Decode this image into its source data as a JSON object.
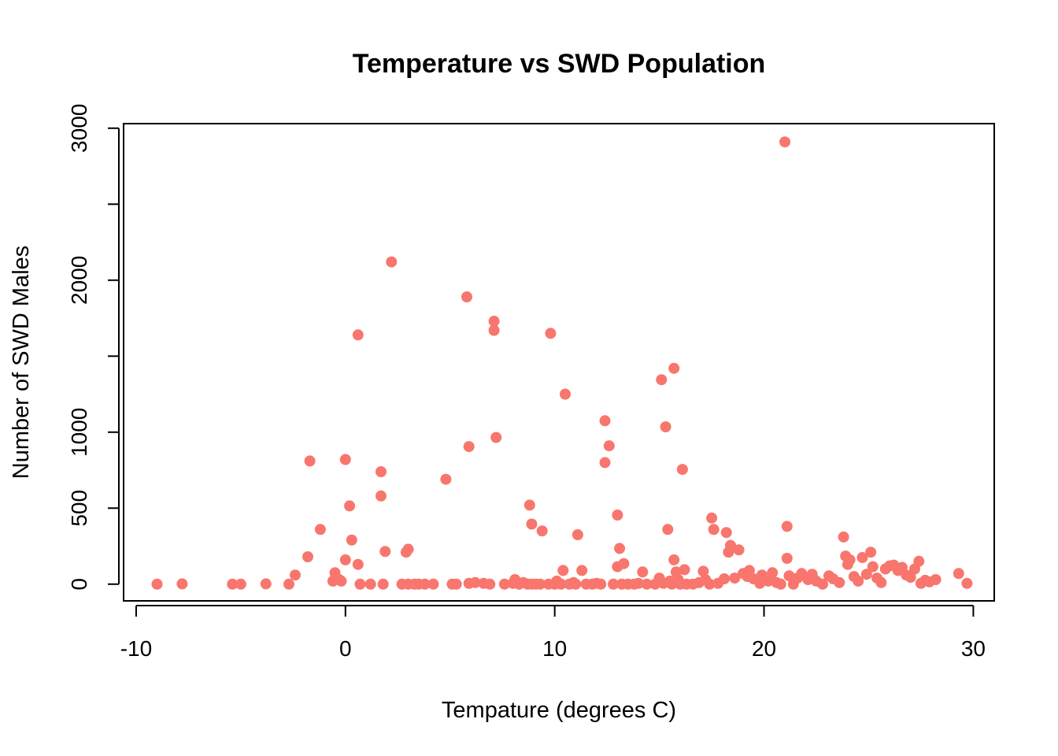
{
  "chart_data": {
    "type": "scatter",
    "title": "Temperature vs SWD Population",
    "xlabel": "Tempature (degrees C)",
    "ylabel": "Number of SWD Males",
    "xlim": [
      -10.6,
      31.0
    ],
    "ylim": [
      -110,
      3030
    ],
    "xticks": [
      -10,
      0,
      10,
      20,
      30
    ],
    "xtick_labels": [
      "-10",
      "0",
      "10",
      "20",
      "30"
    ],
    "yticks": [
      0,
      500,
      1000,
      1500,
      2000,
      2500,
      3000
    ],
    "ytick_labels": [
      "0",
      "500",
      "1000",
      "",
      "2000",
      "",
      "3000"
    ],
    "point_color": "#F8766D",
    "grid": false,
    "legend": "none",
    "points": [
      [
        -9.0,
        0
      ],
      [
        -7.8,
        2
      ],
      [
        -5.4,
        0
      ],
      [
        -5.0,
        0
      ],
      [
        -3.8,
        2
      ],
      [
        -2.7,
        0
      ],
      [
        -2.4,
        60
      ],
      [
        -1.7,
        810
      ],
      [
        -1.2,
        360
      ],
      [
        -1.8,
        180
      ],
      [
        -0.6,
        20
      ],
      [
        -0.5,
        75
      ],
      [
        -0.3,
        30
      ],
      [
        -0.2,
        20
      ],
      [
        0.0,
        820
      ],
      [
        0.0,
        160
      ],
      [
        0.2,
        515
      ],
      [
        0.3,
        290
      ],
      [
        0.6,
        1640
      ],
      [
        0.6,
        130
      ],
      [
        0.7,
        0
      ],
      [
        1.2,
        0
      ],
      [
        1.7,
        740
      ],
      [
        1.7,
        580
      ],
      [
        1.8,
        0
      ],
      [
        1.9,
        215
      ],
      [
        2.2,
        2120
      ],
      [
        2.7,
        0
      ],
      [
        2.9,
        210
      ],
      [
        3.0,
        230
      ],
      [
        3.0,
        0
      ],
      [
        3.3,
        0
      ],
      [
        3.5,
        0
      ],
      [
        3.8,
        0
      ],
      [
        4.2,
        0
      ],
      [
        4.8,
        690
      ],
      [
        5.1,
        0
      ],
      [
        5.3,
        0
      ],
      [
        5.8,
        1890
      ],
      [
        5.9,
        905
      ],
      [
        5.9,
        5
      ],
      [
        6.2,
        10
      ],
      [
        6.6,
        5
      ],
      [
        6.9,
        0
      ],
      [
        7.1,
        1670
      ],
      [
        7.1,
        1730
      ],
      [
        7.2,
        965
      ],
      [
        7.6,
        0
      ],
      [
        8.0,
        5
      ],
      [
        8.1,
        30
      ],
      [
        8.3,
        0
      ],
      [
        8.5,
        10
      ],
      [
        8.7,
        0
      ],
      [
        8.8,
        520
      ],
      [
        8.9,
        395
      ],
      [
        8.9,
        0
      ],
      [
        9.1,
        0
      ],
      [
        9.3,
        0
      ],
      [
        9.4,
        350
      ],
      [
        9.7,
        0
      ],
      [
        9.8,
        1650
      ],
      [
        10.0,
        0
      ],
      [
        10.1,
        20
      ],
      [
        10.3,
        0
      ],
      [
        10.4,
        90
      ],
      [
        10.5,
        1250
      ],
      [
        10.7,
        0
      ],
      [
        10.9,
        10
      ],
      [
        11.0,
        0
      ],
      [
        11.1,
        325
      ],
      [
        11.3,
        90
      ],
      [
        11.5,
        0
      ],
      [
        11.8,
        0
      ],
      [
        12.0,
        5
      ],
      [
        12.2,
        0
      ],
      [
        12.4,
        1075
      ],
      [
        12.4,
        800
      ],
      [
        12.6,
        910
      ],
      [
        12.8,
        0
      ],
      [
        13.0,
        455
      ],
      [
        13.0,
        115
      ],
      [
        13.1,
        235
      ],
      [
        13.2,
        0
      ],
      [
        13.3,
        135
      ],
      [
        13.5,
        0
      ],
      [
        13.8,
        0
      ],
      [
        14.0,
        5
      ],
      [
        14.2,
        80
      ],
      [
        14.4,
        0
      ],
      [
        14.8,
        0
      ],
      [
        15.0,
        40
      ],
      [
        15.1,
        1345
      ],
      [
        15.2,
        5
      ],
      [
        15.3,
        1035
      ],
      [
        15.4,
        360
      ],
      [
        15.5,
        20
      ],
      [
        15.6,
        0
      ],
      [
        15.7,
        1420
      ],
      [
        15.7,
        160
      ],
      [
        15.8,
        80
      ],
      [
        15.9,
        30
      ],
      [
        16.0,
        0
      ],
      [
        16.1,
        755
      ],
      [
        16.2,
        95
      ],
      [
        16.3,
        0
      ],
      [
        16.6,
        0
      ],
      [
        16.9,
        10
      ],
      [
        17.1,
        85
      ],
      [
        17.2,
        30
      ],
      [
        17.4,
        0
      ],
      [
        17.5,
        435
      ],
      [
        17.6,
        360
      ],
      [
        17.8,
        5
      ],
      [
        18.1,
        35
      ],
      [
        18.2,
        340
      ],
      [
        18.3,
        210
      ],
      [
        18.4,
        255
      ],
      [
        18.6,
        40
      ],
      [
        18.8,
        225
      ],
      [
        19.0,
        70
      ],
      [
        19.2,
        50
      ],
      [
        19.3,
        90
      ],
      [
        19.5,
        35
      ],
      [
        19.8,
        5
      ],
      [
        19.9,
        60
      ],
      [
        20.2,
        20
      ],
      [
        20.4,
        75
      ],
      [
        20.6,
        10
      ],
      [
        20.8,
        0
      ],
      [
        21.0,
        2910
      ],
      [
        21.1,
        380
      ],
      [
        21.1,
        170
      ],
      [
        21.2,
        55
      ],
      [
        21.4,
        0
      ],
      [
        21.6,
        40
      ],
      [
        21.8,
        70
      ],
      [
        22.1,
        30
      ],
      [
        22.3,
        65
      ],
      [
        22.5,
        20
      ],
      [
        22.8,
        0
      ],
      [
        23.1,
        55
      ],
      [
        23.3,
        35
      ],
      [
        23.6,
        10
      ],
      [
        23.8,
        310
      ],
      [
        23.9,
        185
      ],
      [
        24.0,
        130
      ],
      [
        24.1,
        160
      ],
      [
        24.3,
        50
      ],
      [
        24.5,
        20
      ],
      [
        24.7,
        175
      ],
      [
        24.9,
        65
      ],
      [
        25.1,
        210
      ],
      [
        25.2,
        115
      ],
      [
        25.4,
        40
      ],
      [
        25.6,
        10
      ],
      [
        25.8,
        100
      ],
      [
        26.0,
        120
      ],
      [
        26.2,
        125
      ],
      [
        26.4,
        90
      ],
      [
        26.6,
        110
      ],
      [
        26.8,
        60
      ],
      [
        27.0,
        45
      ],
      [
        27.2,
        100
      ],
      [
        27.4,
        150
      ],
      [
        27.5,
        5
      ],
      [
        27.7,
        25
      ],
      [
        27.9,
        15
      ],
      [
        28.2,
        30
      ],
      [
        29.3,
        70
      ],
      [
        29.7,
        5
      ]
    ]
  }
}
